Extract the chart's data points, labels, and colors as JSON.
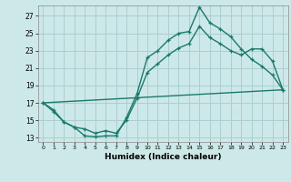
{
  "xlabel": "Humidex (Indice chaleur)",
  "bg_color": "#cde8e8",
  "grid_color": "#aacfcf",
  "line_color": "#1a7a6a",
  "xlim": [
    -0.5,
    23.5
  ],
  "ylim": [
    12.5,
    28.2
  ],
  "xticks": [
    0,
    1,
    2,
    3,
    4,
    5,
    6,
    7,
    8,
    9,
    10,
    11,
    12,
    13,
    14,
    15,
    16,
    17,
    18,
    19,
    20,
    21,
    22,
    23
  ],
  "yticks": [
    13,
    15,
    17,
    19,
    21,
    23,
    25,
    27
  ],
  "line1_x": [
    0,
    1,
    2,
    3,
    4,
    5,
    6,
    7,
    8,
    9,
    10,
    11,
    12,
    13,
    14,
    15,
    16,
    17,
    18,
    19,
    20,
    21,
    22,
    23
  ],
  "line1_y": [
    17.0,
    16.2,
    14.8,
    14.2,
    13.2,
    13.1,
    13.2,
    13.2,
    15.3,
    18.0,
    22.2,
    23.0,
    24.2,
    25.0,
    25.2,
    28.0,
    26.2,
    25.5,
    24.6,
    23.2,
    22.0,
    21.2,
    20.2,
    18.5
  ],
  "line2_x": [
    0,
    1,
    2,
    3,
    4,
    5,
    6,
    7,
    8,
    9,
    10,
    11,
    12,
    13,
    14,
    15,
    16,
    17,
    18,
    19,
    20,
    21,
    22,
    23
  ],
  "line2_y": [
    17.0,
    16.0,
    14.8,
    14.2,
    14.0,
    13.5,
    13.8,
    13.5,
    15.0,
    17.5,
    20.5,
    21.5,
    22.5,
    23.3,
    23.8,
    25.8,
    24.5,
    23.8,
    23.0,
    22.5,
    23.2,
    23.2,
    21.8,
    18.5
  ],
  "line3_x": [
    0,
    23
  ],
  "line3_y": [
    17.0,
    18.5
  ]
}
